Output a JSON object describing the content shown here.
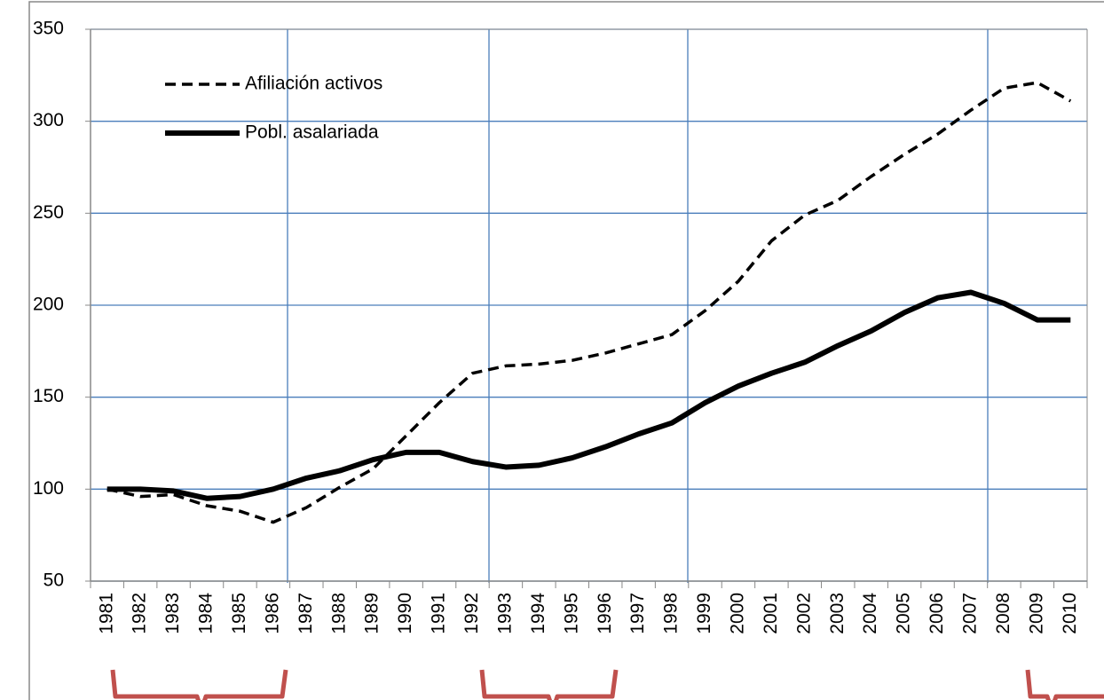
{
  "chart_data": {
    "type": "line",
    "categories": [
      "1981",
      "1982",
      "1983",
      "1984",
      "1985",
      "1986",
      "1987",
      "1988",
      "1989",
      "1990",
      "1991",
      "1992",
      "1993",
      "1994",
      "1995",
      "1996",
      "1997",
      "1998",
      "1999",
      "2000",
      "2001",
      "2002",
      "2003",
      "2004",
      "2005",
      "2006",
      "2007",
      "2008",
      "2009",
      "2010"
    ],
    "series": [
      {
        "name": "Afiliación activos",
        "color": "#000000",
        "dash": true,
        "values": [
          100,
          96,
          97,
          91,
          88,
          82,
          90,
          101,
          111,
          129,
          147,
          163,
          167,
          168,
          170,
          174,
          179,
          184,
          197,
          213,
          235,
          249,
          257,
          270,
          282,
          293,
          306,
          318,
          321,
          311
        ]
      },
      {
        "name": "Pobl. asalariada",
        "color": "#000000",
        "dash": false,
        "values": [
          100,
          100,
          99,
          95,
          96,
          100,
          106,
          110,
          116,
          120,
          120,
          115,
          112,
          113,
          117,
          123,
          130,
          136,
          147,
          156,
          163,
          169,
          178,
          186,
          196,
          204,
          207,
          201,
          192,
          192
        ]
      }
    ],
    "ylim": [
      50,
      350
    ],
    "yticks": [
      50,
      100,
      150,
      200,
      250,
      300,
      350
    ],
    "grid": true
  }
}
